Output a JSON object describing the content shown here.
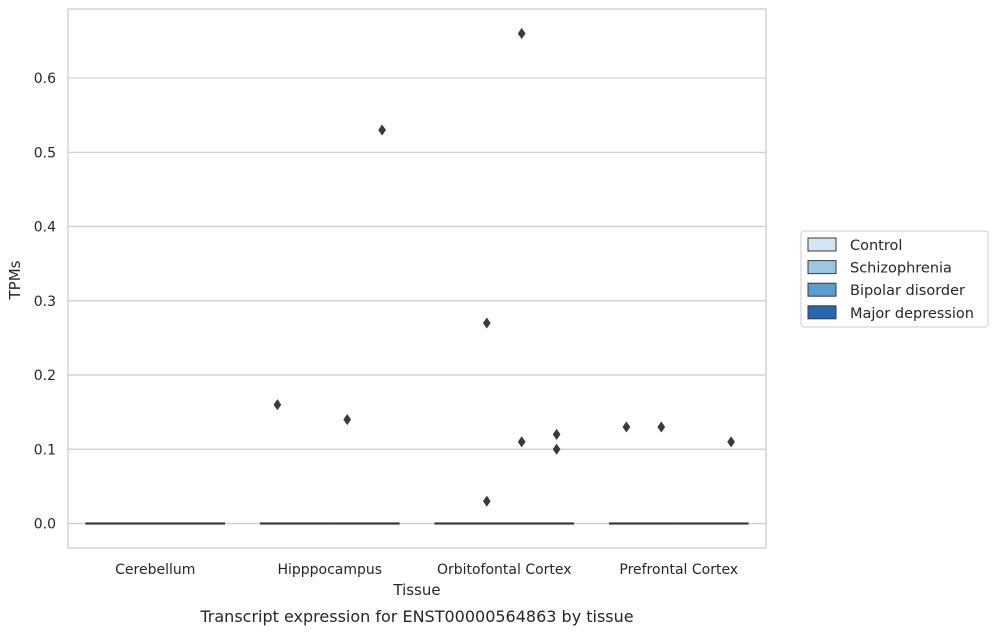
{
  "chart_data": {
    "type": "box",
    "caption": "Transcript expression for ENST00000564863 by tissue",
    "xlabel": "Tissue",
    "ylabel": "TPMs",
    "categories": [
      "Cerebellum",
      "Hipppocampus",
      "Orbitofontal Cortex",
      "Prefrontal Cortex"
    ],
    "ylim": [
      -0.033,
      0.693
    ],
    "yticks": [
      0.0,
      0.1,
      0.2,
      0.3,
      0.4,
      0.5,
      0.6
    ],
    "ytick_labels": [
      "0.0",
      "0.1",
      "0.2",
      "0.3",
      "0.4",
      "0.5",
      "0.6"
    ],
    "grid": "horizontal",
    "legend_position": "right",
    "series": [
      {
        "name": "Control",
        "color": "#d3e4f3"
      },
      {
        "name": "Schizophrenia",
        "color": "#9ac8e0"
      },
      {
        "name": "Bipolar disorder",
        "color": "#5b9ccc"
      },
      {
        "name": "Major depression",
        "color": "#2767ad"
      }
    ],
    "boxes": [
      {
        "category": "Cerebellum",
        "series": "Control",
        "median": 0.0
      },
      {
        "category": "Cerebellum",
        "series": "Schizophrenia",
        "median": 0.0
      },
      {
        "category": "Cerebellum",
        "series": "Bipolar disorder",
        "median": 0.0
      },
      {
        "category": "Cerebellum",
        "series": "Major depression",
        "median": 0.0
      },
      {
        "category": "Hipppocampus",
        "series": "Control",
        "median": 0.0
      },
      {
        "category": "Hipppocampus",
        "series": "Schizophrenia",
        "median": 0.0
      },
      {
        "category": "Hipppocampus",
        "series": "Bipolar disorder",
        "median": 0.0
      },
      {
        "category": "Hipppocampus",
        "series": "Major depression",
        "median": 0.0
      },
      {
        "category": "Orbitofontal Cortex",
        "series": "Control",
        "median": 0.0
      },
      {
        "category": "Orbitofontal Cortex",
        "series": "Schizophrenia",
        "median": 0.0
      },
      {
        "category": "Orbitofontal Cortex",
        "series": "Bipolar disorder",
        "median": 0.0
      },
      {
        "category": "Orbitofontal Cortex",
        "series": "Major depression",
        "median": 0.0
      },
      {
        "category": "Prefrontal Cortex",
        "series": "Control",
        "median": 0.0
      },
      {
        "category": "Prefrontal Cortex",
        "series": "Schizophrenia",
        "median": 0.0
      },
      {
        "category": "Prefrontal Cortex",
        "series": "Bipolar disorder",
        "median": 0.0
      },
      {
        "category": "Prefrontal Cortex",
        "series": "Major depression",
        "median": 0.0
      }
    ],
    "outliers": [
      {
        "category": "Hipppocampus",
        "series": "Control",
        "value": 0.16
      },
      {
        "category": "Hipppocampus",
        "series": "Bipolar disorder",
        "value": 0.14
      },
      {
        "category": "Hipppocampus",
        "series": "Major depression",
        "value": 0.53
      },
      {
        "category": "Orbitofontal Cortex",
        "series": "Schizophrenia",
        "value": 0.27
      },
      {
        "category": "Orbitofontal Cortex",
        "series": "Schizophrenia",
        "value": 0.03
      },
      {
        "category": "Orbitofontal Cortex",
        "series": "Bipolar disorder",
        "value": 0.66
      },
      {
        "category": "Orbitofontal Cortex",
        "series": "Bipolar disorder",
        "value": 0.11
      },
      {
        "category": "Orbitofontal Cortex",
        "series": "Major depression",
        "value": 0.12
      },
      {
        "category": "Orbitofontal Cortex",
        "series": "Major depression",
        "value": 0.1
      },
      {
        "category": "Prefrontal Cortex",
        "series": "Control",
        "value": 0.13
      },
      {
        "category": "Prefrontal Cortex",
        "series": "Schizophrenia",
        "value": 0.13
      },
      {
        "category": "Prefrontal Cortex",
        "series": "Major depression",
        "value": 0.11
      }
    ],
    "line_color": "#3a3a3a",
    "grid_color": "#cccccc",
    "frame_color": "#cccccc"
  }
}
